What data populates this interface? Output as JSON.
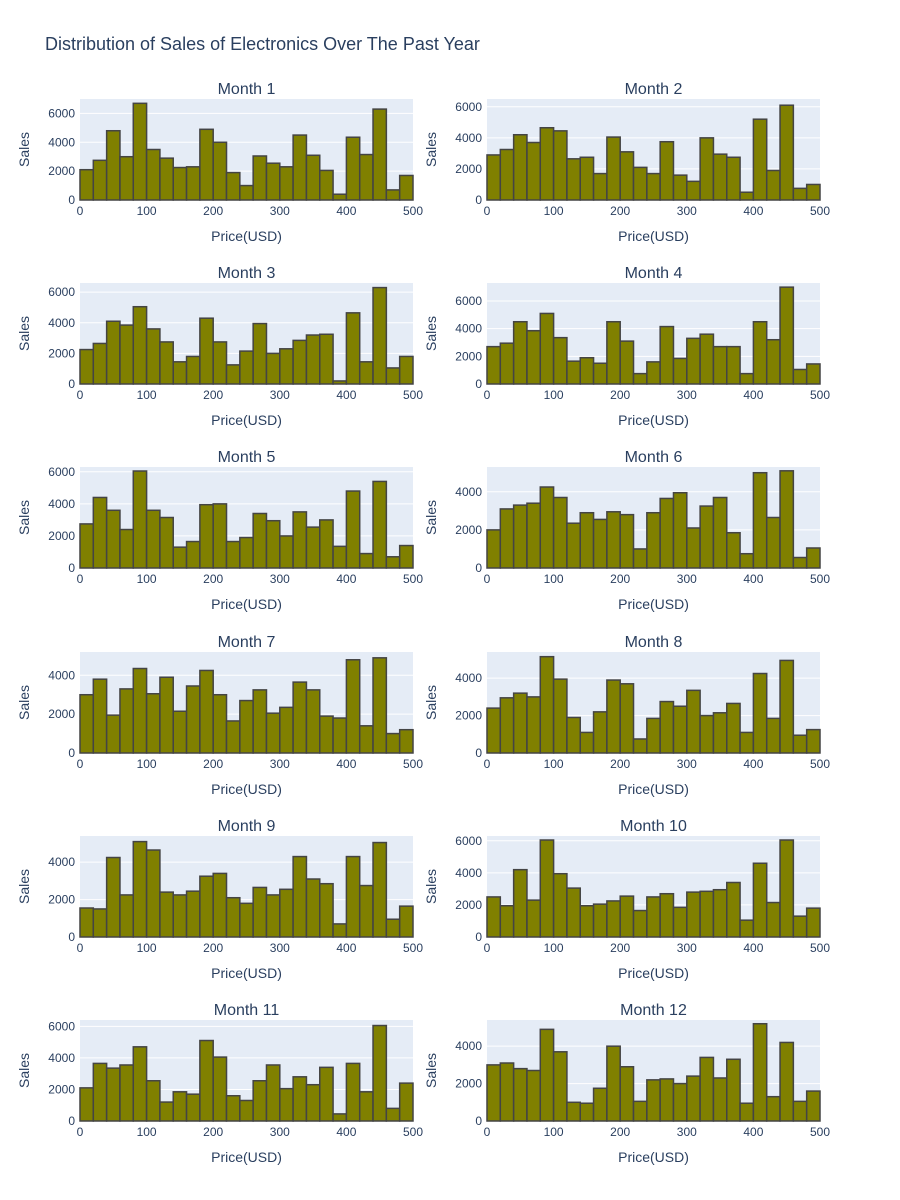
{
  "chart_data": {
    "type": "bar",
    "title": "Distribution of Sales of Electronics Over The Past Year",
    "bar_color": "#808000",
    "bar_outline_color": "#444444",
    "plot_background": "#e5ecf6",
    "xlabel": "Price(USD)",
    "ylabel": "Sales",
    "x_bins": [
      0,
      20,
      40,
      60,
      80,
      100,
      120,
      140,
      160,
      180,
      200,
      220,
      240,
      260,
      280,
      300,
      320,
      340,
      360,
      380,
      400,
      420,
      440,
      460,
      480
    ],
    "bin_width": 20,
    "xlim": [
      0,
      500
    ],
    "x_ticks": [
      0,
      100,
      200,
      300,
      400,
      500
    ],
    "panels": [
      {
        "title": "Month 1",
        "ylim": [
          0,
          7000
        ],
        "y_ticks": [
          0,
          2000,
          4000,
          6000
        ],
        "values": [
          2100,
          2750,
          4800,
          3000,
          6700,
          3500,
          2900,
          2250,
          2300,
          4900,
          4000,
          1900,
          1000,
          3050,
          2550,
          2300,
          4500,
          3100,
          2050,
          400,
          4350,
          3150,
          6300,
          700,
          1700
        ]
      },
      {
        "title": "Month 2",
        "ylim": [
          0,
          6500
        ],
        "y_ticks": [
          0,
          2000,
          4000,
          6000
        ],
        "values": [
          2900,
          3250,
          4200,
          3700,
          4650,
          4450,
          2650,
          2750,
          1700,
          4050,
          3100,
          2100,
          1700,
          3750,
          1600,
          1200,
          4000,
          2950,
          2750,
          500,
          5200,
          1900,
          6100,
          750,
          1000
        ]
      },
      {
        "title": "Month 3",
        "ylim": [
          0,
          6600
        ],
        "y_ticks": [
          0,
          2000,
          4000,
          6000
        ],
        "values": [
          2250,
          2650,
          4100,
          3850,
          5050,
          3600,
          2750,
          1450,
          1800,
          4300,
          2750,
          1250,
          2150,
          3950,
          2000,
          2300,
          2850,
          3200,
          3250,
          200,
          4650,
          1450,
          6300,
          1050,
          1800
        ]
      },
      {
        "title": "Month 4",
        "ylim": [
          0,
          7300
        ],
        "y_ticks": [
          0,
          2000,
          4000,
          6000
        ],
        "values": [
          2700,
          2950,
          4500,
          3850,
          5100,
          3350,
          1650,
          1900,
          1500,
          4500,
          3100,
          750,
          1600,
          4150,
          1850,
          3300,
          3600,
          2700,
          2700,
          750,
          4500,
          3200,
          7000,
          1050,
          1450
        ]
      },
      {
        "title": "Month 5",
        "ylim": [
          0,
          6300
        ],
        "y_ticks": [
          0,
          2000,
          4000,
          6000
        ],
        "values": [
          2750,
          4400,
          3600,
          2400,
          6050,
          3600,
          3150,
          1300,
          1650,
          3950,
          4000,
          1650,
          1900,
          3400,
          2950,
          2000,
          3500,
          2550,
          3000,
          1350,
          4800,
          900,
          5400,
          700,
          1400
        ]
      },
      {
        "title": "Month 6",
        "ylim": [
          0,
          5300
        ],
        "y_ticks": [
          0,
          2000,
          4000
        ],
        "values": [
          2000,
          3100,
          3300,
          3400,
          4250,
          3700,
          2350,
          2900,
          2550,
          2950,
          2800,
          1000,
          2900,
          3650,
          3950,
          2100,
          3250,
          3700,
          1850,
          750,
          5000,
          2650,
          5100,
          550,
          1050
        ]
      },
      {
        "title": "Month 7",
        "ylim": [
          0,
          5200
        ],
        "y_ticks": [
          0,
          2000,
          4000
        ],
        "values": [
          3000,
          3800,
          1950,
          3300,
          4350,
          3050,
          3900,
          2150,
          3450,
          4250,
          3000,
          1650,
          2700,
          3250,
          2050,
          2350,
          3650,
          3250,
          1900,
          1800,
          4800,
          1400,
          4900,
          1000,
          1200
        ]
      },
      {
        "title": "Month 8",
        "ylim": [
          0,
          5400
        ],
        "y_ticks": [
          0,
          2000,
          4000
        ],
        "values": [
          2400,
          2950,
          3200,
          3000,
          5150,
          3950,
          1900,
          1100,
          2200,
          3900,
          3700,
          750,
          1850,
          2750,
          2500,
          3350,
          2000,
          2150,
          2650,
          1100,
          4250,
          1850,
          4950,
          950,
          1250
        ]
      },
      {
        "title": "Month 9",
        "ylim": [
          0,
          5400
        ],
        "y_ticks": [
          0,
          2000,
          4000
        ],
        "values": [
          1550,
          1500,
          4250,
          2250,
          5100,
          4650,
          2400,
          2250,
          2450,
          3250,
          3400,
          2100,
          1800,
          2650,
          2250,
          2550,
          4300,
          3100,
          2850,
          700,
          4300,
          2750,
          5050,
          950,
          1650
        ]
      },
      {
        "title": "Month 10",
        "ylim": [
          0,
          6300
        ],
        "y_ticks": [
          0,
          2000,
          4000,
          6000
        ],
        "values": [
          2500,
          1950,
          4200,
          2300,
          6050,
          3950,
          3050,
          1950,
          2050,
          2250,
          2550,
          1650,
          2500,
          2700,
          1850,
          2800,
          2850,
          2950,
          3400,
          1050,
          4600,
          2150,
          6050,
          1300,
          1800
        ]
      },
      {
        "title": "Month 11",
        "ylim": [
          0,
          6400
        ],
        "y_ticks": [
          0,
          2000,
          4000,
          6000
        ],
        "values": [
          2100,
          3650,
          3350,
          3550,
          4700,
          2550,
          1200,
          1850,
          1700,
          5100,
          4050,
          1600,
          1300,
          2550,
          3550,
          2050,
          2800,
          2300,
          3400,
          450,
          3650,
          1850,
          6050,
          800,
          2400
        ]
      },
      {
        "title": "Month 12",
        "ylim": [
          0,
          5400
        ],
        "y_ticks": [
          0,
          2000,
          4000
        ],
        "values": [
          3000,
          3100,
          2800,
          2700,
          4900,
          3700,
          1000,
          950,
          1750,
          4000,
          2900,
          1050,
          2200,
          2250,
          2000,
          2400,
          3400,
          2300,
          3300,
          950,
          5200,
          1300,
          4200,
          1050,
          1600
        ]
      }
    ]
  }
}
